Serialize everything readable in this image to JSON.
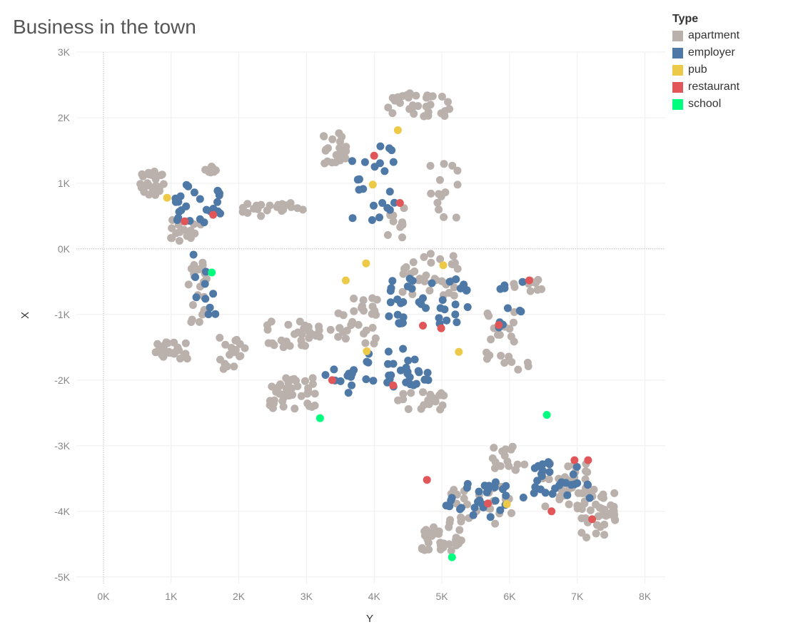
{
  "chart_data": {
    "type": "scatter",
    "title": "Business in the town",
    "xlabel": "Y",
    "ylabel": "X",
    "xlim": [
      -400,
      8300
    ],
    "ylim": [
      -5100,
      3000
    ],
    "x_ticks": [
      "0K",
      "1K",
      "2K",
      "3K",
      "4K",
      "5K",
      "6K",
      "7K",
      "8K"
    ],
    "x_tick_values": [
      0,
      1000,
      2000,
      3000,
      4000,
      5000,
      6000,
      7000,
      8000
    ],
    "y_ticks": [
      "3K",
      "2K",
      "1K",
      "0K",
      "-1K",
      "-2K",
      "-3K",
      "-4K",
      "-5K"
    ],
    "y_tick_values": [
      3000,
      2000,
      1000,
      0,
      -1000,
      -2000,
      -3000,
      -4000,
      -5000
    ],
    "grid": true,
    "legend_title": "Type",
    "legend_position": "top-right",
    "series": [
      {
        "name": "apartment",
        "color": "#BAB0AC",
        "clusters": [
          {
            "cx": 700,
            "cy": 1000,
            "sx": 200,
            "sy": 180,
            "n": 32
          },
          {
            "cx": 1600,
            "cy": 1200,
            "sx": 100,
            "sy": 60,
            "n": 10
          },
          {
            "cx": 2500,
            "cy": 600,
            "sx": 450,
            "sy": 100,
            "n": 24
          },
          {
            "cx": 1200,
            "cy": 300,
            "sx": 250,
            "sy": 180,
            "n": 18
          },
          {
            "cx": 1000,
            "cy": -1550,
            "sx": 250,
            "sy": 130,
            "n": 26
          },
          {
            "cx": 1400,
            "cy": -700,
            "sx": 150,
            "sy": 500,
            "n": 24
          },
          {
            "cx": 1900,
            "cy": -1600,
            "sx": 200,
            "sy": 250,
            "n": 18
          },
          {
            "cx": 2800,
            "cy": -1300,
            "sx": 400,
            "sy": 200,
            "n": 30
          },
          {
            "cx": 2800,
            "cy": -2200,
            "sx": 350,
            "sy": 250,
            "n": 40
          },
          {
            "cx": 3400,
            "cy": 1550,
            "sx": 200,
            "sy": 250,
            "n": 22
          },
          {
            "cx": 4700,
            "cy": 2200,
            "sx": 500,
            "sy": 180,
            "n": 32
          },
          {
            "cx": 3700,
            "cy": -1100,
            "sx": 350,
            "sy": 350,
            "n": 30
          },
          {
            "cx": 4800,
            "cy": -400,
            "sx": 450,
            "sy": 350,
            "n": 32
          },
          {
            "cx": 4700,
            "cy": -2300,
            "sx": 350,
            "sy": 150,
            "n": 18
          },
          {
            "cx": 6000,
            "cy": -1400,
            "sx": 350,
            "sy": 500,
            "n": 22
          },
          {
            "cx": 6300,
            "cy": -550,
            "sx": 250,
            "sy": 100,
            "n": 10
          },
          {
            "cx": 5000,
            "cy": -4400,
            "sx": 300,
            "sy": 200,
            "n": 34
          },
          {
            "cx": 5600,
            "cy": -3900,
            "sx": 500,
            "sy": 300,
            "n": 26
          },
          {
            "cx": 6800,
            "cy": -3600,
            "sx": 350,
            "sy": 350,
            "n": 34
          },
          {
            "cx": 7300,
            "cy": -4000,
            "sx": 300,
            "sy": 400,
            "n": 40
          },
          {
            "cx": 6000,
            "cy": -3200,
            "sx": 250,
            "sy": 200,
            "n": 16
          },
          {
            "cx": 4300,
            "cy": 400,
            "sx": 150,
            "sy": 250,
            "n": 10
          },
          {
            "cx": 5000,
            "cy": 900,
            "sx": 250,
            "sy": 500,
            "n": 14
          }
        ]
      },
      {
        "name": "employer",
        "color": "#4E79A7",
        "clusters": [
          {
            "cx": 1400,
            "cy": 700,
            "sx": 350,
            "sy": 300,
            "n": 26
          },
          {
            "cx": 1500,
            "cy": -500,
            "sx": 200,
            "sy": 500,
            "n": 10
          },
          {
            "cx": 4000,
            "cy": 1000,
            "sx": 350,
            "sy": 600,
            "n": 22
          },
          {
            "cx": 4800,
            "cy": -800,
            "sx": 600,
            "sy": 350,
            "n": 40
          },
          {
            "cx": 4300,
            "cy": -1800,
            "sx": 500,
            "sy": 300,
            "n": 30
          },
          {
            "cx": 3500,
            "cy": -2000,
            "sx": 300,
            "sy": 200,
            "n": 12
          },
          {
            "cx": 5500,
            "cy": -3800,
            "sx": 450,
            "sy": 300,
            "n": 28
          },
          {
            "cx": 6700,
            "cy": -3500,
            "sx": 500,
            "sy": 300,
            "n": 30
          },
          {
            "cx": 6000,
            "cy": -800,
            "sx": 200,
            "sy": 400,
            "n": 10
          }
        ]
      }
    ],
    "points": {
      "pub": {
        "color": "#EDC948",
        "values": [
          [
            940,
            780
          ],
          [
            3980,
            980
          ],
          [
            4350,
            1810
          ],
          [
            3880,
            -220
          ],
          [
            3580,
            -480
          ],
          [
            3890,
            -1560
          ],
          [
            5020,
            -250
          ],
          [
            5960,
            -3890
          ],
          [
            5250,
            -1570
          ]
        ]
      },
      "restaurant": {
        "color": "#E15759",
        "values": [
          [
            1200,
            420
          ],
          [
            1620,
            520
          ],
          [
            4000,
            1420
          ],
          [
            4380,
            700
          ],
          [
            3380,
            -2000
          ],
          [
            4280,
            -2080
          ],
          [
            4720,
            -1170
          ],
          [
            4990,
            -1210
          ],
          [
            5840,
            -1160
          ],
          [
            6290,
            -480
          ],
          [
            4780,
            -3520
          ],
          [
            6620,
            -4000
          ],
          [
            7160,
            -3220
          ],
          [
            6960,
            -3220
          ],
          [
            7220,
            -4120
          ],
          [
            5680,
            -3880
          ]
        ]
      },
      "school": {
        "color": "#00FF7F",
        "values": [
          [
            1600,
            -360
          ],
          [
            3200,
            -2580
          ],
          [
            5150,
            -4700
          ],
          [
            6550,
            -2530
          ]
        ]
      }
    }
  }
}
